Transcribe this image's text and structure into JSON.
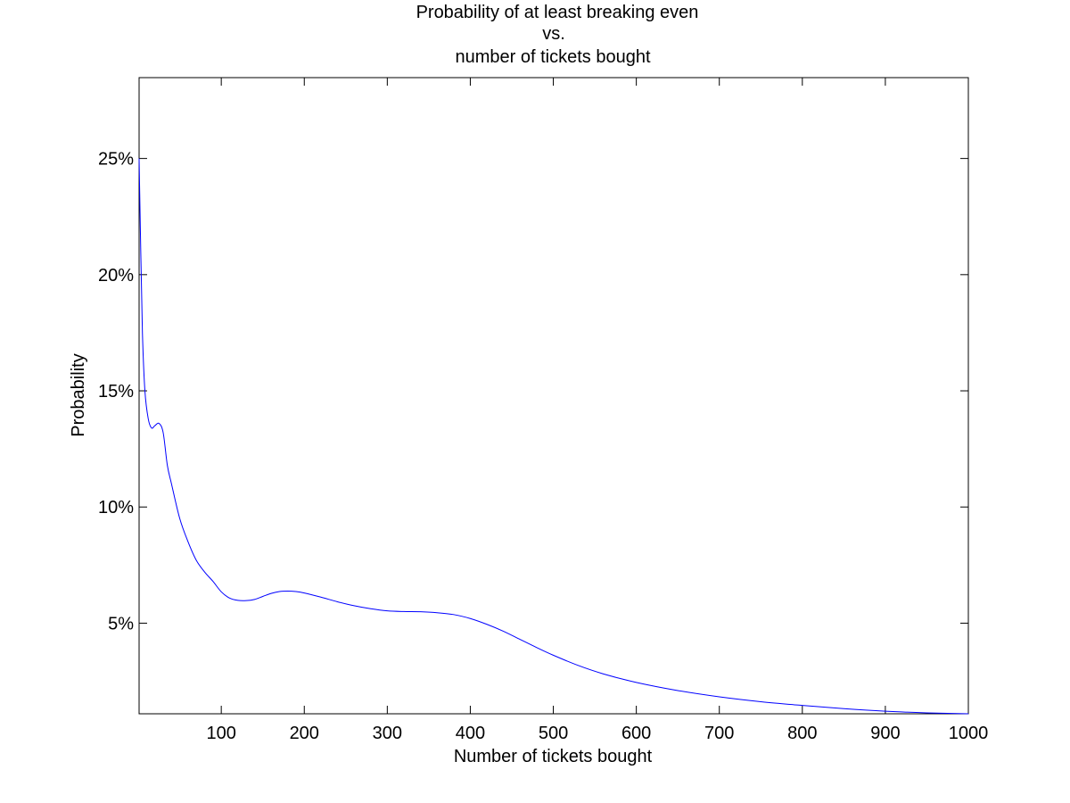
{
  "chart_data": {
    "type": "line",
    "title_lines": [
      "Probability of at least breaking even",
      "vs.",
      "number of tickets bought"
    ],
    "xlabel": "Number of tickets bought",
    "ylabel": "Probability",
    "xlim": [
      1,
      1000
    ],
    "ylim": [
      0.011,
      0.2848
    ],
    "x_ticks": [
      100,
      200,
      300,
      400,
      500,
      600,
      700,
      800,
      900,
      1000
    ],
    "x_tick_labels": [
      "100",
      "200",
      "300",
      "400",
      "500",
      "600",
      "700",
      "800",
      "900",
      "1000"
    ],
    "y_ticks": [
      0.05,
      0.1,
      0.15,
      0.2,
      0.25
    ],
    "y_tick_labels": [
      "5%",
      "10%",
      "15%",
      "20%",
      "25%"
    ],
    "grid": false,
    "series": [
      {
        "color": "#0000ff",
        "x": [
          1,
          3,
          5,
          8,
          12,
          16,
          20,
          25,
          30,
          35,
          40,
          50,
          60,
          70,
          80,
          90,
          100,
          110,
          120,
          130,
          140,
          150,
          160,
          170,
          180,
          190,
          200,
          220,
          240,
          260,
          280,
          300,
          320,
          340,
          360,
          380,
          400,
          420,
          440,
          460,
          480,
          500,
          530,
          560,
          600,
          650,
          700,
          750,
          800,
          850,
          900,
          950,
          1000
        ],
        "y": [
          0.25,
          0.21,
          0.175,
          0.15,
          0.138,
          0.134,
          0.135,
          0.136,
          0.132,
          0.118,
          0.11,
          0.095,
          0.085,
          0.077,
          0.072,
          0.068,
          0.0635,
          0.0608,
          0.0598,
          0.0597,
          0.0602,
          0.0615,
          0.0628,
          0.0636,
          0.0638,
          0.0636,
          0.063,
          0.0612,
          0.0592,
          0.0575,
          0.0562,
          0.0553,
          0.055,
          0.0549,
          0.0545,
          0.0537,
          0.052,
          0.0495,
          0.0465,
          0.043,
          0.0395,
          0.0362,
          0.0318,
          0.0282,
          0.0245,
          0.021,
          0.0183,
          0.0162,
          0.0146,
          0.0132,
          0.0121,
          0.0114,
          0.011
        ]
      }
    ]
  }
}
